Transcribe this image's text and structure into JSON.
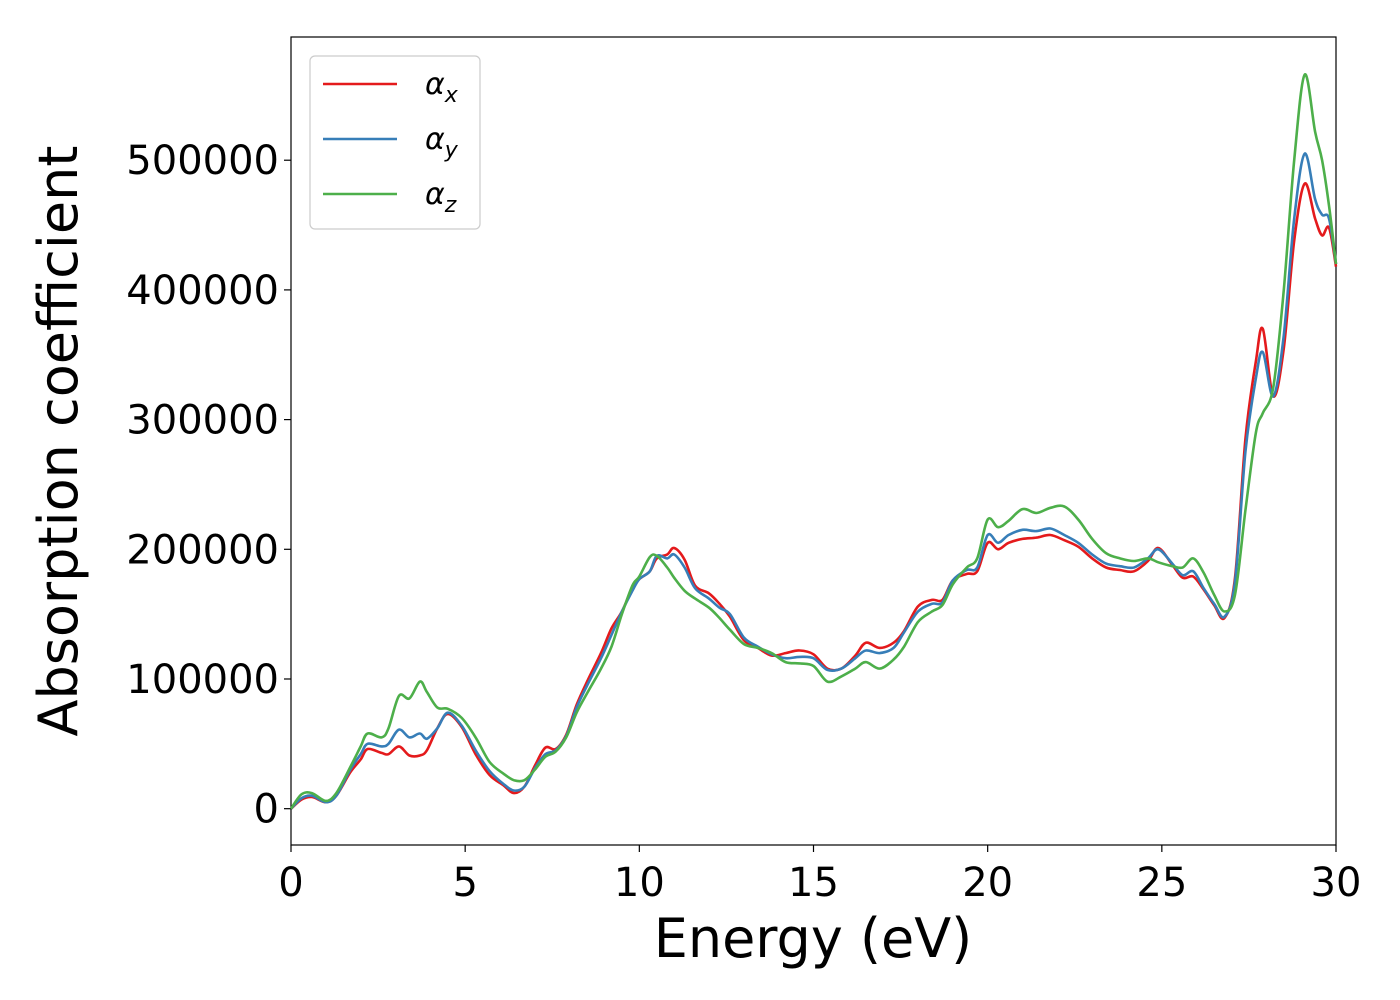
{
  "chart_data": {
    "type": "line",
    "title": "",
    "xlabel": "Energy (eV)",
    "ylabel": "Absorption coefficient",
    "xlim": [
      0,
      30
    ],
    "ylim": [
      -28000,
      595000
    ],
    "xticks": [
      0,
      5,
      10,
      15,
      20,
      25,
      30
    ],
    "yticks": [
      0,
      100000,
      200000,
      300000,
      400000,
      500000
    ],
    "xtick_labels": [
      "0",
      "5",
      "10",
      "15",
      "20",
      "25",
      "30"
    ],
    "ytick_labels": [
      "0",
      "100000",
      "200000",
      "300000",
      "400000",
      "500000"
    ],
    "grid": false,
    "legend_position": "top-left",
    "series": [
      {
        "name": "α",
        "subscript": "x",
        "color": "#e41a1c",
        "points": [
          [
            0,
            0
          ],
          [
            0.3,
            7000
          ],
          [
            0.6,
            9000
          ],
          [
            1.0,
            5000
          ],
          [
            1.3,
            10000
          ],
          [
            1.7,
            28000
          ],
          [
            2.0,
            38000
          ],
          [
            2.2,
            46000
          ],
          [
            2.6,
            43000
          ],
          [
            2.8,
            42000
          ],
          [
            3.1,
            48000
          ],
          [
            3.4,
            41000
          ],
          [
            3.7,
            41000
          ],
          [
            3.9,
            45000
          ],
          [
            4.2,
            62000
          ],
          [
            4.5,
            73000
          ],
          [
            4.9,
            63000
          ],
          [
            5.3,
            42000
          ],
          [
            5.7,
            26000
          ],
          [
            6.1,
            18000
          ],
          [
            6.4,
            12000
          ],
          [
            6.7,
            17000
          ],
          [
            7.0,
            33000
          ],
          [
            7.3,
            47000
          ],
          [
            7.6,
            46000
          ],
          [
            7.9,
            57000
          ],
          [
            8.2,
            80000
          ],
          [
            8.5,
            98000
          ],
          [
            8.9,
            120000
          ],
          [
            9.2,
            139000
          ],
          [
            9.5,
            152000
          ],
          [
            9.8,
            170000
          ],
          [
            10.0,
            177000
          ],
          [
            10.3,
            183000
          ],
          [
            10.5,
            193000
          ],
          [
            10.8,
            196000
          ],
          [
            11.0,
            201000
          ],
          [
            11.3,
            192000
          ],
          [
            11.6,
            172000
          ],
          [
            12.0,
            166000
          ],
          [
            12.3,
            158000
          ],
          [
            12.6,
            148000
          ],
          [
            13.0,
            130000
          ],
          [
            13.4,
            124000
          ],
          [
            13.8,
            118000
          ],
          [
            14.2,
            120000
          ],
          [
            14.6,
            122000
          ],
          [
            15.0,
            119000
          ],
          [
            15.4,
            108000
          ],
          [
            15.8,
            108000
          ],
          [
            16.2,
            118000
          ],
          [
            16.5,
            128000
          ],
          [
            16.9,
            124000
          ],
          [
            17.3,
            128000
          ],
          [
            17.6,
            137000
          ],
          [
            18.0,
            156000
          ],
          [
            18.4,
            161000
          ],
          [
            18.7,
            161000
          ],
          [
            19.0,
            176000
          ],
          [
            19.4,
            181000
          ],
          [
            19.7,
            183000
          ],
          [
            20.0,
            205000
          ],
          [
            20.3,
            200000
          ],
          [
            20.6,
            205000
          ],
          [
            21.0,
            208000
          ],
          [
            21.4,
            209000
          ],
          [
            21.8,
            211000
          ],
          [
            22.2,
            207000
          ],
          [
            22.6,
            202000
          ],
          [
            23.0,
            193000
          ],
          [
            23.4,
            186000
          ],
          [
            23.8,
            184000
          ],
          [
            24.2,
            183000
          ],
          [
            24.6,
            191000
          ],
          [
            24.9,
            201000
          ],
          [
            25.3,
            188000
          ],
          [
            25.6,
            178000
          ],
          [
            25.9,
            179000
          ],
          [
            26.2,
            169000
          ],
          [
            26.5,
            157000
          ],
          [
            26.8,
            147000
          ],
          [
            27.1,
            178000
          ],
          [
            27.4,
            285000
          ],
          [
            27.7,
            345000
          ],
          [
            27.9,
            370000
          ],
          [
            28.2,
            318000
          ],
          [
            28.5,
            355000
          ],
          [
            28.8,
            438000
          ],
          [
            29.1,
            482000
          ],
          [
            29.4,
            455000
          ],
          [
            29.6,
            442000
          ],
          [
            29.8,
            448000
          ],
          [
            30.0,
            418000
          ]
        ]
      },
      {
        "name": "α",
        "subscript": "y",
        "color": "#377eb8",
        "points": [
          [
            0,
            0
          ],
          [
            0.3,
            8000
          ],
          [
            0.6,
            10000
          ],
          [
            1.0,
            5000
          ],
          [
            1.3,
            10000
          ],
          [
            1.7,
            30000
          ],
          [
            2.0,
            42000
          ],
          [
            2.2,
            50000
          ],
          [
            2.6,
            48000
          ],
          [
            2.8,
            50000
          ],
          [
            3.1,
            61000
          ],
          [
            3.4,
            55000
          ],
          [
            3.7,
            58000
          ],
          [
            3.9,
            54000
          ],
          [
            4.2,
            62000
          ],
          [
            4.5,
            74000
          ],
          [
            4.9,
            64000
          ],
          [
            5.3,
            45000
          ],
          [
            5.7,
            29000
          ],
          [
            6.1,
            19000
          ],
          [
            6.4,
            14000
          ],
          [
            6.7,
            17000
          ],
          [
            7.0,
            31000
          ],
          [
            7.3,
            42000
          ],
          [
            7.6,
            45000
          ],
          [
            7.9,
            56000
          ],
          [
            8.2,
            78000
          ],
          [
            8.5,
            95000
          ],
          [
            8.9,
            116000
          ],
          [
            9.2,
            134000
          ],
          [
            9.5,
            152000
          ],
          [
            9.8,
            168000
          ],
          [
            10.0,
            177000
          ],
          [
            10.3,
            183000
          ],
          [
            10.5,
            195000
          ],
          [
            10.8,
            193000
          ],
          [
            11.0,
            196000
          ],
          [
            11.3,
            186000
          ],
          [
            11.6,
            170000
          ],
          [
            12.0,
            162000
          ],
          [
            12.3,
            155000
          ],
          [
            12.6,
            150000
          ],
          [
            13.0,
            132000
          ],
          [
            13.4,
            125000
          ],
          [
            13.8,
            119000
          ],
          [
            14.2,
            116000
          ],
          [
            14.6,
            117000
          ],
          [
            15.0,
            116000
          ],
          [
            15.4,
            107000
          ],
          [
            15.8,
            108000
          ],
          [
            16.2,
            116000
          ],
          [
            16.5,
            122000
          ],
          [
            16.9,
            120000
          ],
          [
            17.3,
            124000
          ],
          [
            17.6,
            136000
          ],
          [
            18.0,
            152000
          ],
          [
            18.4,
            158000
          ],
          [
            18.7,
            159000
          ],
          [
            19.0,
            176000
          ],
          [
            19.4,
            184000
          ],
          [
            19.7,
            186000
          ],
          [
            20.0,
            211000
          ],
          [
            20.3,
            205000
          ],
          [
            20.6,
            211000
          ],
          [
            21.0,
            215000
          ],
          [
            21.4,
            214000
          ],
          [
            21.8,
            216000
          ],
          [
            22.2,
            211000
          ],
          [
            22.6,
            205000
          ],
          [
            23.0,
            196000
          ],
          [
            23.4,
            189000
          ],
          [
            23.8,
            187000
          ],
          [
            24.2,
            186000
          ],
          [
            24.6,
            193000
          ],
          [
            24.9,
            200000
          ],
          [
            25.3,
            189000
          ],
          [
            25.6,
            180000
          ],
          [
            25.9,
            183000
          ],
          [
            26.2,
            170000
          ],
          [
            26.5,
            158000
          ],
          [
            26.8,
            148000
          ],
          [
            27.1,
            175000
          ],
          [
            27.4,
            275000
          ],
          [
            27.7,
            332000
          ],
          [
            27.9,
            352000
          ],
          [
            28.2,
            318000
          ],
          [
            28.5,
            365000
          ],
          [
            28.8,
            455000
          ],
          [
            29.1,
            505000
          ],
          [
            29.4,
            470000
          ],
          [
            29.6,
            458000
          ],
          [
            29.8,
            455000
          ],
          [
            30.0,
            420000
          ]
        ]
      },
      {
        "name": "α",
        "subscript": "z",
        "color": "#4daf4a",
        "points": [
          [
            0,
            0
          ],
          [
            0.3,
            11000
          ],
          [
            0.6,
            12000
          ],
          [
            1.0,
            6000
          ],
          [
            1.3,
            12000
          ],
          [
            1.7,
            32000
          ],
          [
            2.0,
            48000
          ],
          [
            2.2,
            58000
          ],
          [
            2.6,
            55000
          ],
          [
            2.8,
            62000
          ],
          [
            3.1,
            87000
          ],
          [
            3.4,
            85000
          ],
          [
            3.7,
            98000
          ],
          [
            3.9,
            90000
          ],
          [
            4.2,
            78000
          ],
          [
            4.5,
            77000
          ],
          [
            4.9,
            70000
          ],
          [
            5.3,
            55000
          ],
          [
            5.7,
            36000
          ],
          [
            6.1,
            27000
          ],
          [
            6.4,
            22000
          ],
          [
            6.7,
            22000
          ],
          [
            7.0,
            30000
          ],
          [
            7.3,
            40000
          ],
          [
            7.6,
            44000
          ],
          [
            7.9,
            55000
          ],
          [
            8.2,
            74000
          ],
          [
            8.5,
            89000
          ],
          [
            8.9,
            108000
          ],
          [
            9.2,
            125000
          ],
          [
            9.5,
            150000
          ],
          [
            9.8,
            172000
          ],
          [
            10.0,
            179000
          ],
          [
            10.3,
            194000
          ],
          [
            10.5,
            195000
          ],
          [
            10.8,
            186000
          ],
          [
            11.0,
            178000
          ],
          [
            11.3,
            168000
          ],
          [
            11.6,
            162000
          ],
          [
            12.0,
            155000
          ],
          [
            12.3,
            147000
          ],
          [
            12.6,
            138000
          ],
          [
            13.0,
            127000
          ],
          [
            13.4,
            124000
          ],
          [
            13.8,
            120000
          ],
          [
            14.2,
            113000
          ],
          [
            14.6,
            112000
          ],
          [
            15.0,
            110000
          ],
          [
            15.4,
            98000
          ],
          [
            15.8,
            102000
          ],
          [
            16.2,
            108000
          ],
          [
            16.5,
            113000
          ],
          [
            16.9,
            108000
          ],
          [
            17.3,
            115000
          ],
          [
            17.6,
            125000
          ],
          [
            18.0,
            144000
          ],
          [
            18.4,
            152000
          ],
          [
            18.7,
            157000
          ],
          [
            19.0,
            173000
          ],
          [
            19.4,
            186000
          ],
          [
            19.7,
            193000
          ],
          [
            20.0,
            223000
          ],
          [
            20.3,
            217000
          ],
          [
            20.6,
            222000
          ],
          [
            21.0,
            231000
          ],
          [
            21.4,
            228000
          ],
          [
            21.8,
            232000
          ],
          [
            22.2,
            233000
          ],
          [
            22.6,
            223000
          ],
          [
            23.0,
            208000
          ],
          [
            23.4,
            197000
          ],
          [
            23.8,
            193000
          ],
          [
            24.2,
            191000
          ],
          [
            24.6,
            193000
          ],
          [
            24.9,
            190000
          ],
          [
            25.3,
            187000
          ],
          [
            25.6,
            186000
          ],
          [
            25.9,
            193000
          ],
          [
            26.2,
            182000
          ],
          [
            26.5,
            165000
          ],
          [
            26.8,
            152000
          ],
          [
            27.1,
            165000
          ],
          [
            27.4,
            230000
          ],
          [
            27.7,
            290000
          ],
          [
            27.9,
            305000
          ],
          [
            28.2,
            325000
          ],
          [
            28.5,
            400000
          ],
          [
            28.8,
            500000
          ],
          [
            29.1,
            566000
          ],
          [
            29.4,
            522000
          ],
          [
            29.6,
            500000
          ],
          [
            29.8,
            465000
          ],
          [
            30.0,
            420000
          ]
        ]
      }
    ]
  }
}
